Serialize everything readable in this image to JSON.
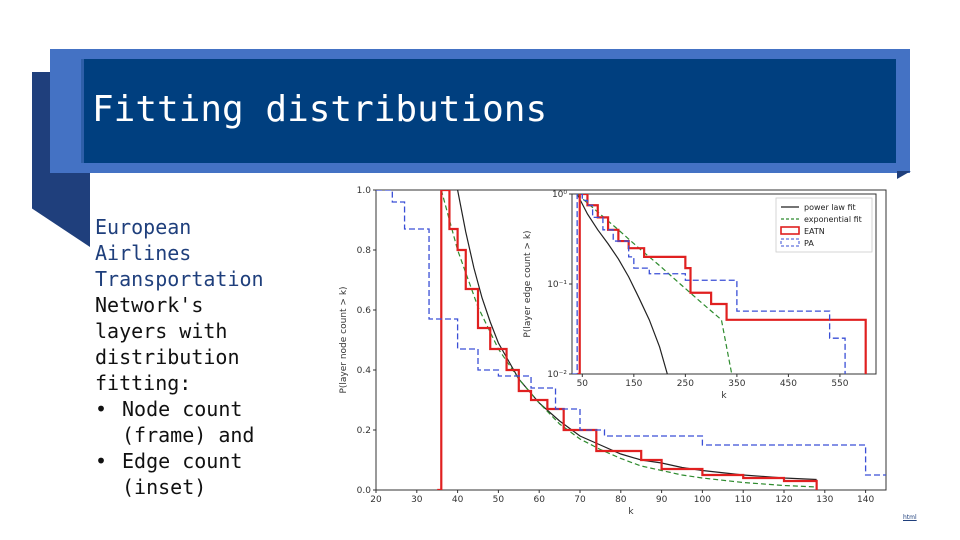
{
  "slide": {
    "title": "Fitting distributions",
    "intro_lines": [
      "European",
      "Airlines",
      "Transportation"
    ],
    "body_lines": [
      "Network's",
      "layers with",
      "distribution",
      "fitting:"
    ],
    "bullets": [
      {
        "line1": "Node count",
        "line2": "(frame) and"
      },
      {
        "line1": "Edge count",
        "line2": "(inset)"
      }
    ],
    "bullet_char": "•",
    "footer_link": "html",
    "colors": {
      "banner_outer": "#4472c4",
      "banner_inner": "#003f7f",
      "accent_text": "#1f3f7c"
    }
  },
  "chart_data": [
    {
      "type": "line",
      "role": "main",
      "xlabel": "k",
      "ylabel": "P(layer node count > k)",
      "xlim": [
        20,
        145
      ],
      "ylim": [
        0,
        1.0
      ],
      "xticks": [
        20,
        30,
        40,
        50,
        60,
        70,
        80,
        90,
        100,
        110,
        120,
        130,
        140
      ],
      "yticks": [
        0.0,
        0.2,
        0.4,
        0.6,
        0.8,
        1.0
      ],
      "ytick_labels": [
        "0.0",
        "0.2",
        "0.4",
        "0.6",
        "0.8",
        "1.0"
      ],
      "series": [
        {
          "name": "power law fit",
          "style": "solid",
          "color": "#222222",
          "x": [
            40,
            42,
            44,
            46,
            48,
            50,
            55,
            60,
            65,
            70,
            75,
            80,
            85,
            90,
            95,
            100,
            110,
            120,
            128
          ],
          "y": [
            1.0,
            0.86,
            0.74,
            0.64,
            0.56,
            0.49,
            0.37,
            0.29,
            0.23,
            0.18,
            0.15,
            0.12,
            0.1,
            0.09,
            0.075,
            0.065,
            0.05,
            0.04,
            0.035
          ]
        },
        {
          "name": "exponential fit",
          "style": "dashed",
          "color": "#2e8b2e",
          "x": [
            36,
            40,
            45,
            50,
            55,
            60,
            65,
            70,
            75,
            80,
            85,
            90,
            95,
            100,
            110,
            120,
            128
          ],
          "y": [
            1.0,
            0.8,
            0.61,
            0.47,
            0.37,
            0.29,
            0.22,
            0.17,
            0.135,
            0.105,
            0.08,
            0.065,
            0.05,
            0.04,
            0.025,
            0.015,
            0.01
          ]
        },
        {
          "name": "EATN",
          "style": "step",
          "color": "#e02020",
          "x": [
            35,
            36,
            38,
            40,
            42,
            45,
            48,
            52,
            55,
            58,
            62,
            66,
            70,
            74,
            80,
            85,
            90,
            100,
            110,
            120,
            128
          ],
          "y": [
            0.0,
            1.0,
            0.87,
            0.8,
            0.67,
            0.54,
            0.47,
            0.4,
            0.33,
            0.3,
            0.27,
            0.2,
            0.2,
            0.13,
            0.13,
            0.1,
            0.07,
            0.05,
            0.04,
            0.03,
            0.0
          ]
        },
        {
          "name": "PA",
          "style": "dashed-step",
          "color": "#3a4fd6",
          "x": [
            20,
            24,
            27,
            33,
            35,
            40,
            45,
            50,
            54,
            58,
            64,
            70,
            76,
            90,
            100,
            130,
            140,
            145
          ],
          "y": [
            1.0,
            0.96,
            0.87,
            0.57,
            0.57,
            0.47,
            0.4,
            0.38,
            0.38,
            0.34,
            0.27,
            0.2,
            0.18,
            0.18,
            0.15,
            0.15,
            0.05,
            0.05
          ]
        }
      ]
    },
    {
      "type": "line",
      "role": "inset",
      "scale": "log-y",
      "xlabel": "k",
      "ylabel": "P(layer edge count > k)",
      "xlim": [
        30,
        620
      ],
      "ylim": [
        0.01,
        1
      ],
      "xticks": [
        50,
        150,
        250,
        350,
        450,
        550
      ],
      "yticks": [
        1,
        0.1,
        0.01
      ],
      "ytick_labels": [
        "10⁰",
        "10⁻¹",
        "10⁻²"
      ],
      "legend_position": "top-right",
      "series": [
        {
          "name": "power law fit",
          "style": "solid",
          "color": "#222222",
          "x": [
            40,
            60,
            80,
            100,
            120,
            140,
            160,
            180,
            200,
            215
          ],
          "y": [
            1.0,
            0.6,
            0.4,
            0.28,
            0.19,
            0.12,
            0.07,
            0.04,
            0.02,
            0.01
          ]
        },
        {
          "name": "exponential fit",
          "style": "dashed",
          "color": "#2e8b2e",
          "x": [
            40,
            80,
            120,
            160,
            200,
            240,
            280,
            320,
            340
          ],
          "y": [
            1.0,
            0.63,
            0.4,
            0.25,
            0.16,
            0.1,
            0.063,
            0.04,
            0.01
          ]
        },
        {
          "name": "EATN",
          "style": "step",
          "color": "#e02020",
          "x": [
            40,
            45,
            60,
            80,
            100,
            120,
            140,
            170,
            200,
            250,
            260,
            300,
            330,
            600
          ],
          "y": [
            0.01,
            1.0,
            0.75,
            0.55,
            0.4,
            0.3,
            0.25,
            0.2,
            0.2,
            0.15,
            0.08,
            0.06,
            0.04,
            0.01
          ]
        },
        {
          "name": "PA",
          "style": "dashed-step",
          "color": "#3a4fd6",
          "x": [
            30,
            40,
            50,
            60,
            70,
            90,
            110,
            140,
            150,
            180,
            220,
            250,
            300,
            350,
            530,
            560
          ],
          "y": [
            0.01,
            1.0,
            0.85,
            0.75,
            0.55,
            0.4,
            0.3,
            0.2,
            0.15,
            0.13,
            0.13,
            0.11,
            0.11,
            0.05,
            0.025,
            0.01
          ]
        }
      ]
    }
  ]
}
